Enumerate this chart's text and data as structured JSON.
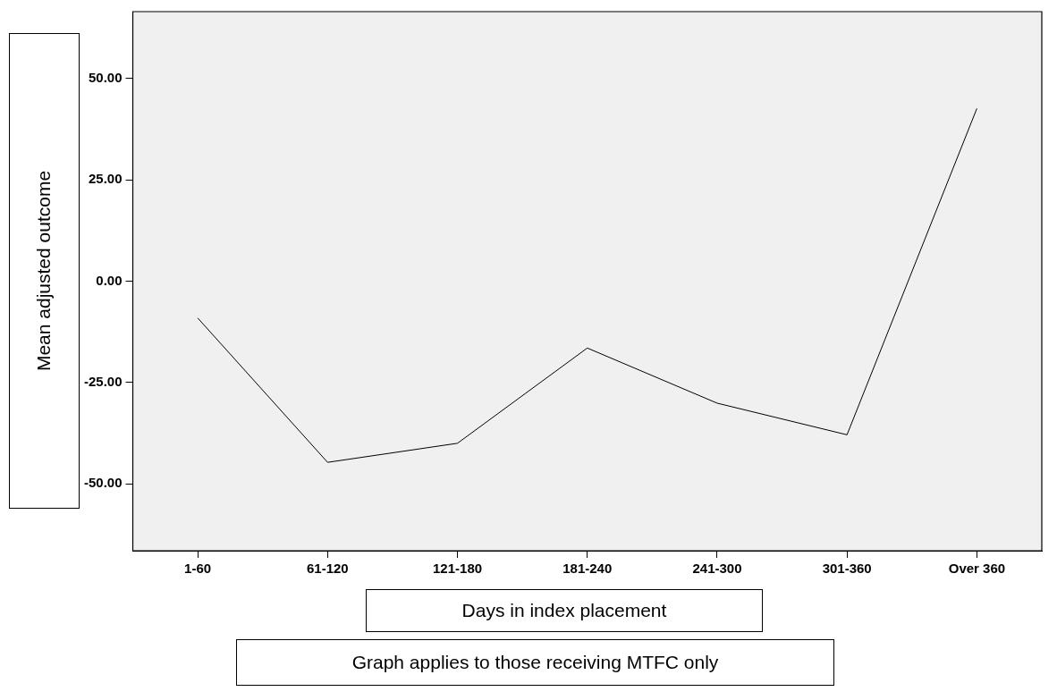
{
  "chart_data": {
    "type": "line",
    "xlabel": "Days in index placement",
    "ylabel": "Mean adjusted outcome",
    "annotations": [
      "Graph applies to those receiving MTFC only"
    ],
    "categories": [
      "1-60",
      "61-120",
      "121-180",
      "181-240",
      "241-300",
      "301-360",
      "Over 360"
    ],
    "series": [
      {
        "color": "#000000",
        "values": [
          -9.1,
          -44.7,
          -40.0,
          -16.5,
          -30.1,
          -37.9,
          42.6
        ]
      }
    ],
    "ylim": [
      -66.5,
      66.5
    ],
    "yticks": [
      {
        "value": 50,
        "label": "50.00"
      },
      {
        "value": 25,
        "label": "25.00"
      },
      {
        "value": 0,
        "label": "0.00"
      },
      {
        "value": -25,
        "label": "-25.00"
      },
      {
        "value": -50,
        "label": "-50.00"
      }
    ],
    "grid": false,
    "legend": false,
    "marker": "none",
    "line_style": "solid"
  }
}
